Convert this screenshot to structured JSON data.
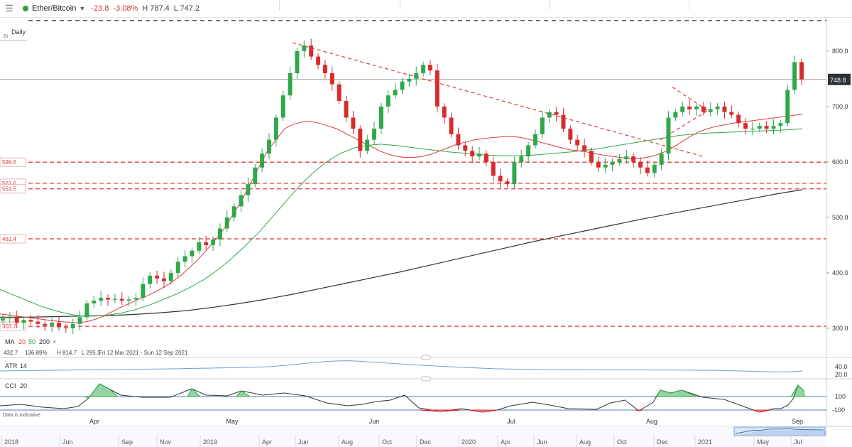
{
  "header": {
    "menu_icon": "hamburger-icon",
    "instrument": "Ether/Bitcoin",
    "change": "-23.8",
    "change_pct": "-3.08%",
    "high": "H 787.4",
    "low": "L 747.2",
    "status_color": "#2e9e3a"
  },
  "main_panel": {
    "interval": "Daily",
    "interval_short": "Bi",
    "ma_legend": {
      "label": "MA",
      "values": [
        "20",
        "50",
        "200"
      ],
      "colors": [
        "#e03a3a",
        "#2ea84a",
        "#222222"
      ],
      "close": "×"
    },
    "stats": {
      "value": "432.7",
      "pct": "136.89%",
      "high": "H 814.7",
      "low": "L 295.3",
      "range": "Fri 12 Mar 2021 - Sun 12 Sep 2021"
    }
  },
  "atr_panel": {
    "label": "ATR",
    "period": "14",
    "ticks": [
      "40.0",
      "20.0"
    ]
  },
  "cci_panel": {
    "label": "CCI",
    "period": "20",
    "ticks": [
      "100",
      "-100"
    ],
    "note": "Data is indicative"
  },
  "colors": {
    "up": "#2ea84a",
    "down": "#d62c2c",
    "ma20": "#e03a3a",
    "ma50": "#2ea84a",
    "ma200": "#333333",
    "level": "#e03a3a"
  },
  "chart_data": {
    "type": "candlestick",
    "title": "Ether/Bitcoin",
    "ylim": [
      250,
      860
    ],
    "y_ticks": [
      300,
      400,
      500,
      600,
      700,
      800
    ],
    "last_price": 748.8,
    "levels": [
      599.6,
      561.6,
      551.5,
      461.4,
      303.7
    ],
    "level_labels": [
      "599.6",
      "561.6",
      "551.5",
      "461.4",
      "303.7"
    ],
    "top_dashed_level": 855,
    "main_x_labels": [
      "Apr",
      "May",
      "Jun",
      "Jul",
      "Aug",
      "Sep"
    ],
    "nav_labels": [
      "2018",
      "Jun",
      "Sep",
      "Nov",
      "2019",
      "Apr",
      "Jun",
      "Aug",
      "Oct",
      "Dec",
      "2020",
      "Apr",
      "Jun",
      "Aug",
      "Oct",
      "Dec",
      "2021",
      "May",
      "Jul"
    ],
    "candles_close": [
      318,
      320,
      310,
      315,
      312,
      308,
      305,
      310,
      302,
      300,
      308,
      320,
      345,
      350,
      355,
      352,
      353,
      350,
      352,
      355,
      380,
      395,
      390,
      385,
      400,
      420,
      430,
      440,
      455,
      450,
      460,
      480,
      500,
      520,
      540,
      560,
      590,
      615,
      640,
      680,
      720,
      760,
      800,
      810,
      790,
      775,
      760,
      740,
      710,
      680,
      660,
      620,
      640,
      660,
      700,
      720,
      730,
      745,
      750,
      760,
      775,
      765,
      700,
      680,
      650,
      630,
      620,
      610,
      615,
      600,
      575,
      565,
      560,
      600,
      610,
      630,
      650,
      680,
      690,
      685,
      660,
      640,
      630,
      620,
      600,
      590,
      595,
      600,
      605,
      610,
      600,
      590,
      580,
      595,
      615,
      680,
      690,
      700,
      695,
      700,
      690,
      695,
      700,
      690,
      685,
      670,
      660,
      660,
      665,
      660,
      665,
      670,
      730,
      780,
      748.8
    ],
    "ma20": [
      326,
      324,
      322,
      320,
      318,
      316,
      314,
      312,
      311,
      310,
      312,
      316,
      322,
      330,
      338,
      345,
      352,
      358,
      366,
      374,
      384,
      396,
      410,
      425,
      442,
      460,
      480,
      505,
      530,
      560,
      590,
      620,
      640,
      660,
      668,
      672,
      673,
      670,
      665,
      660,
      652,
      644,
      636,
      628,
      620,
      614,
      610,
      608,
      608,
      610,
      614,
      620,
      626,
      632,
      636,
      640,
      642,
      644,
      645,
      646,
      645,
      642,
      638,
      634,
      630,
      626,
      622,
      620,
      618,
      615,
      612,
      610,
      608,
      606,
      606,
      608,
      612,
      618,
      626,
      636,
      646,
      654,
      660,
      664,
      667,
      670,
      672,
      674,
      676,
      678,
      680,
      682,
      684,
      686
    ],
    "ma50": [
      370,
      360,
      350,
      340,
      332,
      326,
      322,
      322,
      324,
      328,
      334,
      342,
      352,
      362,
      374,
      388,
      405,
      425,
      448,
      472,
      500,
      528,
      556,
      580,
      600,
      615,
      625,
      630,
      632,
      630,
      627,
      624,
      621,
      618,
      616,
      614,
      612,
      611,
      611,
      612,
      614,
      616,
      618,
      621,
      624,
      628,
      632,
      636,
      640,
      644,
      648,
      650,
      652,
      653,
      654,
      655,
      656,
      657,
      658,
      660
    ],
    "ma200": [
      320,
      320,
      321,
      322,
      323,
      325,
      328,
      332,
      338,
      345,
      353,
      362,
      372,
      382,
      392,
      402,
      413,
      424,
      435,
      446,
      457,
      467,
      477,
      487,
      497,
      506,
      515,
      524,
      533,
      542,
      550
    ]
  }
}
